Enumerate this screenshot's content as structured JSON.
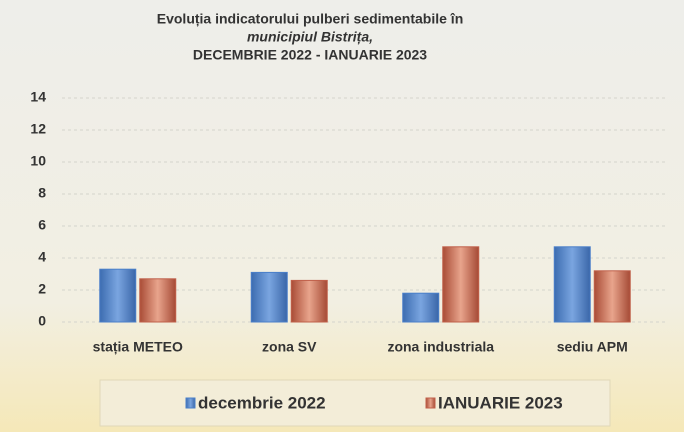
{
  "chart_data": {
    "type": "bar",
    "title": [
      "Evoluția indicatorului pulberi sedimentabile în",
      "municipiul Bistrița,",
      "DECEMBRIE 2022 - IANUARIE 2023"
    ],
    "categories": [
      "stația METEO",
      "zona SV",
      "zona industriala",
      "sediu APM"
    ],
    "series": [
      {
        "name": "decembrie 2022",
        "color": "#4a7fc9",
        "values": [
          3.3,
          3.1,
          1.8,
          4.7
        ]
      },
      {
        "name": "IANUARIE 2023",
        "color": "#c0604a",
        "values": [
          2.7,
          2.6,
          4.7,
          3.2
        ]
      }
    ],
    "ylim": [
      0,
      14
    ],
    "yticks": [
      0,
      2,
      4,
      6,
      8,
      10,
      12,
      14
    ],
    "grid": true,
    "legend": "bottom"
  }
}
